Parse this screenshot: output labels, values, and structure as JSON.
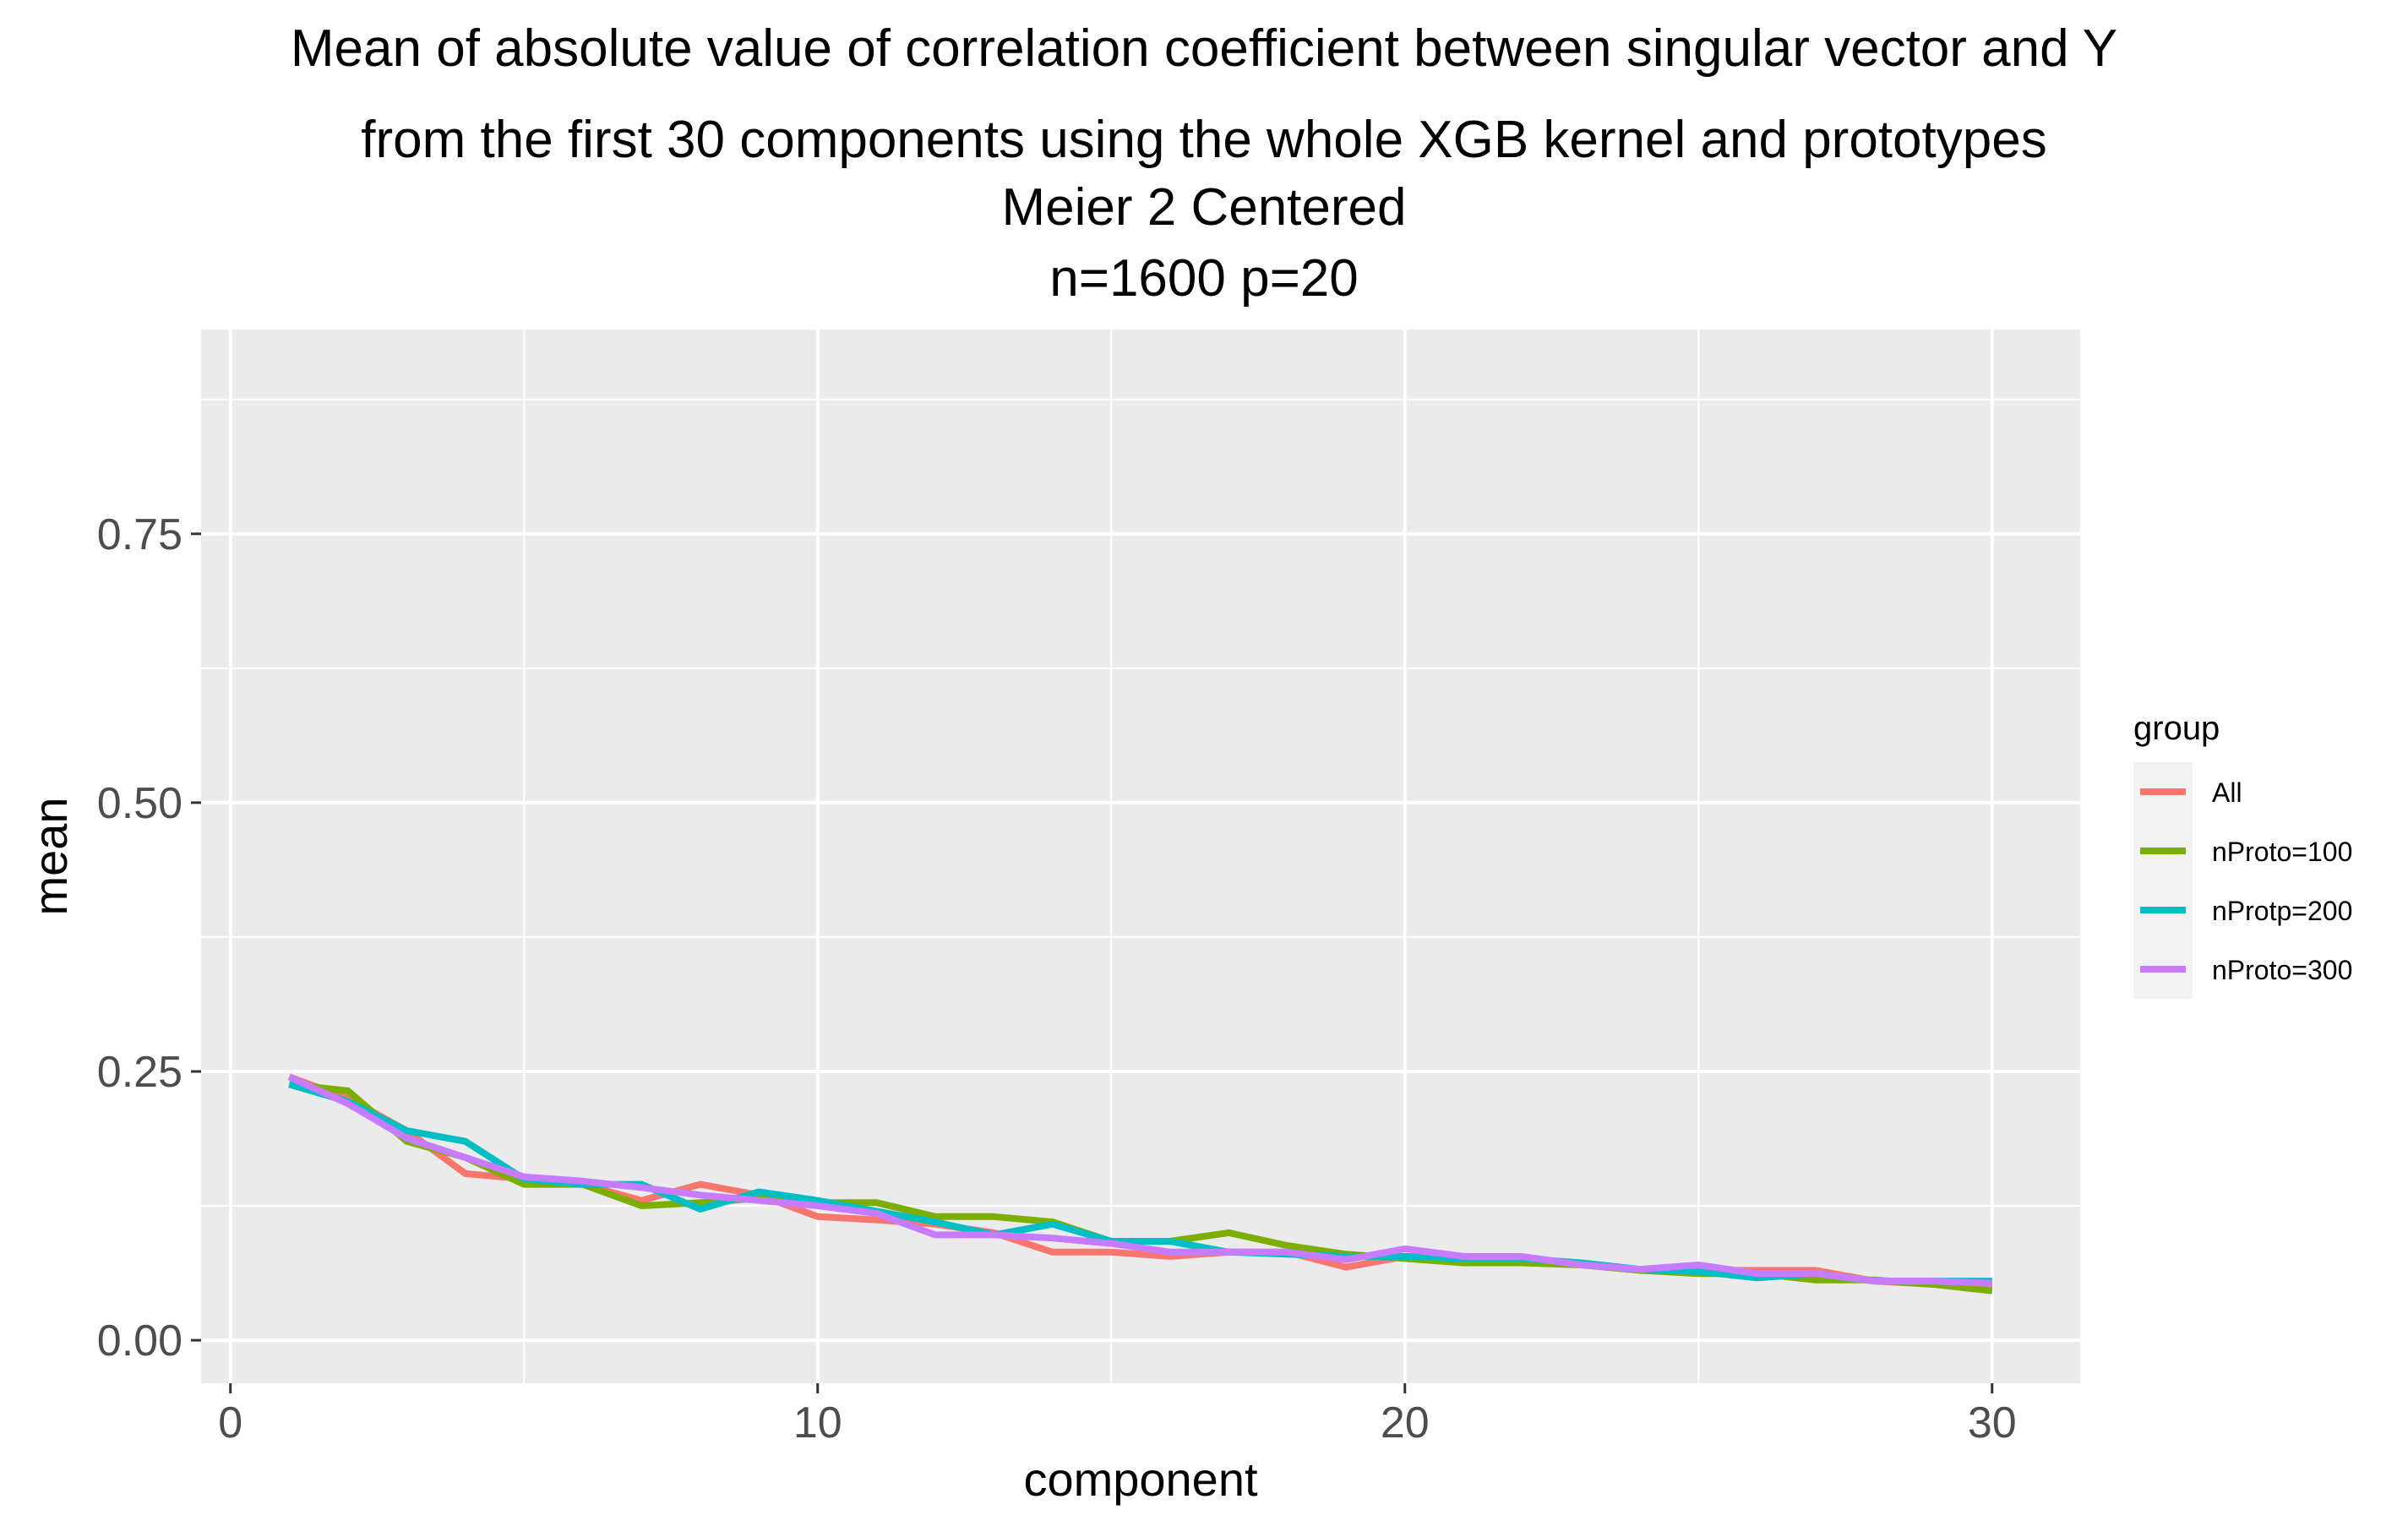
{
  "chart_data": {
    "type": "line",
    "title": "Mean of absolute value of correlation coefficient between singular vector and Y from the first 30 components using the whole XGB kernel and prototypes",
    "title_lines": [
      "Mean of absolute value of correlation coefficient between singular vector and Y",
      "from the first 30 components using the whole XGB kernel and prototypes",
      "Meier 2 Centered",
      "n=1600 p=20"
    ],
    "xlabel": "component",
    "ylabel": "mean",
    "xlim": [
      -0.5,
      31.5
    ],
    "ylim": [
      -0.04,
      0.94
    ],
    "x_ticks": [
      0,
      10,
      20,
      30
    ],
    "x_tick_labels": [
      "0",
      "10",
      "20",
      "30"
    ],
    "y_ticks": [
      0,
      0.25,
      0.5,
      0.75
    ],
    "y_tick_labels": [
      "0.00",
      "0.25",
      "0.50",
      "0.75"
    ],
    "grid": true,
    "panel_background": "#ebebeb",
    "legend": {
      "title": "group",
      "position": "right"
    },
    "x": [
      1,
      2,
      3,
      4,
      5,
      6,
      7,
      8,
      9,
      10,
      11,
      12,
      13,
      14,
      15,
      16,
      17,
      18,
      19,
      20,
      21,
      22,
      23,
      24,
      25,
      26,
      27,
      28,
      29,
      30
    ],
    "series": [
      {
        "name": "All",
        "color": "#F8766D",
        "values": [
          0.245,
          0.225,
          0.195,
          0.155,
          0.15,
          0.145,
          0.13,
          0.145,
          0.135,
          0.115,
          0.112,
          0.108,
          0.1,
          0.082,
          0.082,
          0.078,
          0.082,
          0.082,
          0.068,
          0.078,
          0.072,
          0.075,
          0.072,
          0.065,
          0.065,
          0.065,
          0.065,
          0.055,
          0.052,
          0.05
        ]
      },
      {
        "name": "nProto=100",
        "color": "#7CAE00",
        "values": [
          0.238,
          0.232,
          0.185,
          0.17,
          0.145,
          0.145,
          0.125,
          0.128,
          0.132,
          0.128,
          0.128,
          0.115,
          0.115,
          0.11,
          0.092,
          0.092,
          0.1,
          0.088,
          0.08,
          0.076,
          0.072,
          0.072,
          0.07,
          0.065,
          0.062,
          0.062,
          0.056,
          0.056,
          0.052,
          0.046
        ]
      },
      {
        "name": "nProtp=200",
        "color": "#00BFC4",
        "values": [
          0.238,
          0.222,
          0.195,
          0.185,
          0.15,
          0.145,
          0.145,
          0.122,
          0.138,
          0.13,
          0.12,
          0.11,
          0.098,
          0.108,
          0.092,
          0.092,
          0.082,
          0.08,
          0.078,
          0.078,
          0.076,
          0.076,
          0.072,
          0.066,
          0.064,
          0.058,
          0.062,
          0.055,
          0.055,
          0.055
        ]
      },
      {
        "name": "nProto=300",
        "color": "#C77CFF",
        "values": [
          0.245,
          0.22,
          0.188,
          0.17,
          0.152,
          0.148,
          0.142,
          0.135,
          0.13,
          0.125,
          0.118,
          0.098,
          0.098,
          0.095,
          0.09,
          0.082,
          0.082,
          0.082,
          0.075,
          0.085,
          0.078,
          0.078,
          0.07,
          0.066,
          0.07,
          0.062,
          0.062,
          0.055,
          0.055,
          0.053
        ]
      }
    ]
  }
}
